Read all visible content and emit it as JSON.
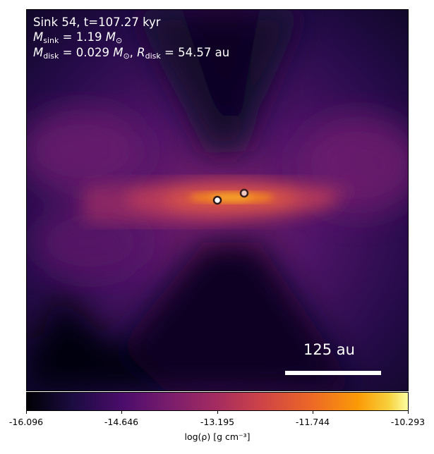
{
  "panel": {
    "sink_label": "Sink 54, t=107.27 kyr",
    "msink_symbol": "M",
    "msink_sub": "sink",
    "msink_value": "= 1.19",
    "msink_unit": "M",
    "msink_unit_sub": "⊙",
    "mdisk_symbol": "M",
    "mdisk_sub": "disk",
    "mdisk_value": "= 0.029",
    "mdisk_unit": "M",
    "mdisk_unit_sub": "⊙",
    "rdisk_symbol": "R",
    "rdisk_sub": "disk",
    "rdisk_value": "= 54.57 au",
    "scalebar_label": "125 au"
  },
  "colorbar": {
    "colormap": "inferno",
    "ticks": [
      "-16.096",
      "-14.646",
      "-13.195",
      "-11.744",
      "-10.293"
    ],
    "label": "log(ρ) [g cm⁻³]"
  },
  "sinks": [
    {
      "name": "primary",
      "fill": "#ffffff",
      "stroke": "#2b1a1a"
    },
    {
      "name": "secondary",
      "fill": "#f3c9c4",
      "stroke": "#3a1f1f"
    }
  ]
}
